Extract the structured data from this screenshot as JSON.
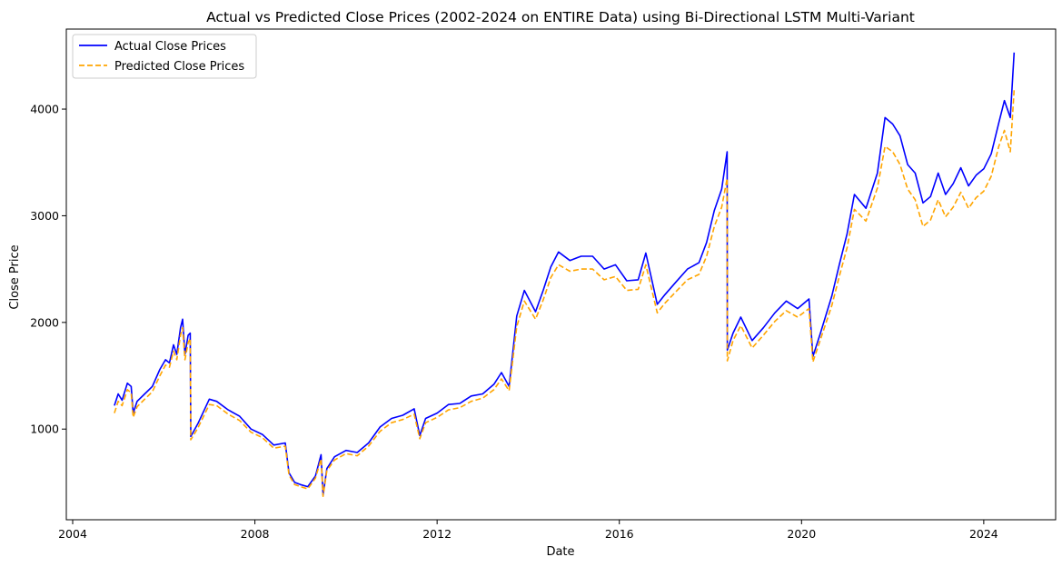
{
  "chart_data": {
    "type": "line",
    "title": "Actual vs Predicted Close Prices (2002-2024 on ENTIRE Data) using Bi-Directional LSTM Multi-Variant",
    "xlabel": "Date",
    "ylabel": "Close Price",
    "xlim": [
      "2003-11-11",
      "2025-07-31"
    ],
    "ylim": [
      150,
      4750
    ],
    "x_ticks": [
      "2004",
      "2008",
      "2012",
      "2016",
      "2020",
      "2024"
    ],
    "y_ticks": [
      "1000",
      "2000",
      "3000",
      "4000"
    ],
    "grid": false,
    "legend_position": "top-left",
    "series": [
      {
        "name": "Actual Close Prices",
        "color": "#0000ff",
        "style": "solid",
        "x": [
          "2004-12-01",
          "2005-01-01",
          "2005-02-01",
          "2005-03-15",
          "2005-04-15",
          "2005-05-01",
          "2005-06-01",
          "2005-08-01",
          "2005-10-01",
          "2005-12-01",
          "2006-01-15",
          "2006-02-15",
          "2006-03-20",
          "2006-04-15",
          "2006-05-15",
          "2006-06-01",
          "2006-06-20",
          "2006-07-15",
          "2006-08-01",
          "2006-08-05",
          "2006-10-01",
          "2007-01-01",
          "2007-03-01",
          "2007-06-01",
          "2007-09-01",
          "2007-12-01",
          "2008-03-01",
          "2008-06-01",
          "2008-09-01",
          "2008-10-01",
          "2008-11-15",
          "2009-01-01",
          "2009-03-01",
          "2009-05-01",
          "2009-06-15",
          "2009-07-01",
          "2009-08-01",
          "2009-10-01",
          "2010-01-01",
          "2010-04-01",
          "2010-07-01",
          "2010-10-01",
          "2011-01-01",
          "2011-04-01",
          "2011-07-01",
          "2011-08-15",
          "2011-10-01",
          "2012-01-01",
          "2012-04-01",
          "2012-07-01",
          "2012-10-01",
          "2013-01-01",
          "2013-04-01",
          "2013-06-01",
          "2013-08-01",
          "2013-10-01",
          "2013-12-01",
          "2014-03-01",
          "2014-05-01",
          "2014-07-01",
          "2014-09-01",
          "2014-12-01",
          "2015-03-01",
          "2015-06-01",
          "2015-09-01",
          "2015-12-01",
          "2016-03-01",
          "2016-06-01",
          "2016-08-01",
          "2016-11-01",
          "2017-01-01",
          "2017-04-01",
          "2017-07-01",
          "2017-10-01",
          "2017-12-01",
          "2018-02-01",
          "2018-04-01",
          "2018-05-15",
          "2018-05-16",
          "2018-07-01",
          "2018-09-01",
          "2018-12-01",
          "2019-03-01",
          "2019-06-01",
          "2019-09-01",
          "2019-12-01",
          "2020-03-01",
          "2020-04-01",
          "2020-06-01",
          "2020-09-01",
          "2020-11-01",
          "2021-01-01",
          "2021-03-01",
          "2021-06-01",
          "2021-09-01",
          "2021-11-01",
          "2022-01-01",
          "2022-03-01",
          "2022-05-01",
          "2022-07-01",
          "2022-09-01",
          "2022-11-01",
          "2023-01-01",
          "2023-03-01",
          "2023-05-01",
          "2023-07-01",
          "2023-09-01",
          "2023-11-01",
          "2024-01-01",
          "2024-03-01",
          "2024-05-01",
          "2024-06-15",
          "2024-08-01",
          "2024-09-01"
        ],
        "y": [
          1220,
          1330,
          1270,
          1430,
          1400,
          1150,
          1260,
          1330,
          1400,
          1560,
          1650,
          1620,
          1790,
          1700,
          1950,
          2030,
          1700,
          1880,
          1900,
          930,
          1050,
          1280,
          1260,
          1180,
          1120,
          1000,
          950,
          850,
          870,
          590,
          500,
          480,
          460,
          560,
          760,
          380,
          630,
          740,
          800,
          780,
          870,
          1020,
          1100,
          1130,
          1190,
          940,
          1100,
          1150,
          1230,
          1240,
          1310,
          1330,
          1420,
          1530,
          1400,
          2060,
          2300,
          2100,
          2300,
          2520,
          2660,
          2580,
          2620,
          2620,
          2500,
          2540,
          2390,
          2400,
          2650,
          2170,
          2260,
          2380,
          2500,
          2560,
          2750,
          3050,
          3250,
          3600,
          1740,
          1900,
          2050,
          1830,
          1950,
          2090,
          2200,
          2130,
          2220,
          1680,
          1900,
          2250,
          2550,
          2830,
          3200,
          3070,
          3400,
          3920,
          3860,
          3750,
          3480,
          3400,
          3120,
          3180,
          3400,
          3200,
          3300,
          3450,
          3280,
          3380,
          3440,
          3580,
          3870,
          4080,
          3920,
          4530
        ]
      },
      {
        "name": "Predicted Close Prices",
        "color": "#ffa500",
        "style": "dashed",
        "x": [
          "2004-12-01",
          "2005-01-01",
          "2005-02-01",
          "2005-03-15",
          "2005-04-15",
          "2005-05-01",
          "2005-06-01",
          "2005-08-01",
          "2005-10-01",
          "2005-12-01",
          "2006-01-15",
          "2006-02-15",
          "2006-03-20",
          "2006-04-15",
          "2006-05-15",
          "2006-06-01",
          "2006-06-20",
          "2006-07-15",
          "2006-08-01",
          "2006-08-05",
          "2006-10-01",
          "2007-01-01",
          "2007-03-01",
          "2007-06-01",
          "2007-09-01",
          "2007-12-01",
          "2008-03-01",
          "2008-06-01",
          "2008-09-01",
          "2008-10-01",
          "2008-11-15",
          "2009-01-01",
          "2009-03-01",
          "2009-05-01",
          "2009-06-15",
          "2009-07-01",
          "2009-08-01",
          "2009-10-01",
          "2010-01-01",
          "2010-04-01",
          "2010-07-01",
          "2010-10-01",
          "2011-01-01",
          "2011-04-01",
          "2011-07-01",
          "2011-08-15",
          "2011-10-01",
          "2012-01-01",
          "2012-04-01",
          "2012-07-01",
          "2012-10-01",
          "2013-01-01",
          "2013-04-01",
          "2013-06-01",
          "2013-08-01",
          "2013-10-01",
          "2013-12-01",
          "2014-03-01",
          "2014-05-01",
          "2014-07-01",
          "2014-09-01",
          "2014-12-01",
          "2015-03-01",
          "2015-06-01",
          "2015-09-01",
          "2015-12-01",
          "2016-03-01",
          "2016-06-01",
          "2016-08-01",
          "2016-11-01",
          "2017-01-01",
          "2017-04-01",
          "2017-07-01",
          "2017-10-01",
          "2017-12-01",
          "2018-02-01",
          "2018-04-01",
          "2018-05-15",
          "2018-05-16",
          "2018-07-01",
          "2018-09-01",
          "2018-12-01",
          "2019-03-01",
          "2019-06-01",
          "2019-09-01",
          "2019-12-01",
          "2020-03-01",
          "2020-04-01",
          "2020-06-01",
          "2020-09-01",
          "2020-11-01",
          "2021-01-01",
          "2021-03-01",
          "2021-06-01",
          "2021-09-01",
          "2021-11-01",
          "2022-01-01",
          "2022-03-01",
          "2022-05-01",
          "2022-07-01",
          "2022-09-01",
          "2022-11-01",
          "2023-01-01",
          "2023-03-01",
          "2023-05-01",
          "2023-07-01",
          "2023-09-01",
          "2023-11-01",
          "2024-01-01",
          "2024-03-01",
          "2024-05-01",
          "2024-06-15",
          "2024-08-01",
          "2024-09-01"
        ],
        "y": [
          1150,
          1260,
          1220,
          1370,
          1340,
          1110,
          1210,
          1280,
          1350,
          1500,
          1600,
          1580,
          1730,
          1650,
          1880,
          1950,
          1650,
          1810,
          1850,
          900,
          1010,
          1230,
          1220,
          1140,
          1080,
          970,
          920,
          820,
          840,
          570,
          480,
          460,
          440,
          540,
          720,
          370,
          610,
          710,
          770,
          750,
          840,
          980,
          1060,
          1090,
          1140,
          910,
          1060,
          1110,
          1180,
          1200,
          1260,
          1290,
          1370,
          1470,
          1360,
          1960,
          2200,
          2030,
          2210,
          2420,
          2540,
          2480,
          2500,
          2500,
          2400,
          2430,
          2300,
          2310,
          2540,
          2090,
          2180,
          2290,
          2400,
          2450,
          2620,
          2900,
          3080,
          3350,
          1640,
          1830,
          1970,
          1760,
          1880,
          2010,
          2110,
          2050,
          2130,
          1630,
          1840,
          2160,
          2440,
          2700,
          3060,
          2950,
          3260,
          3650,
          3600,
          3480,
          3250,
          3150,
          2900,
          2960,
          3150,
          2990,
          3080,
          3220,
          3070,
          3170,
          3230,
          3370,
          3650,
          3800,
          3600,
          4180
        ]
      }
    ]
  }
}
